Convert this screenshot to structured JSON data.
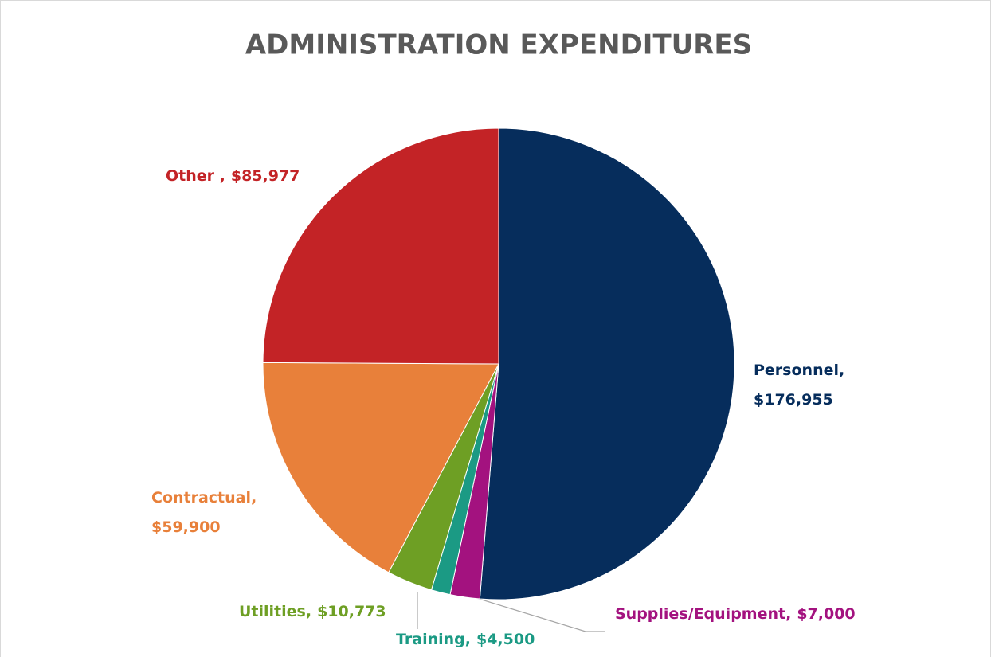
{
  "chart_data": {
    "type": "pie",
    "title": "ADMINISTRATION EXPENDITURES",
    "categories": [
      "Personnel,",
      "Supplies/Equipment,",
      "Training,",
      "Utilities,",
      "Contractual,",
      "Other ,"
    ],
    "values": [
      176955,
      7000,
      4500,
      10773,
      59900,
      85977
    ],
    "value_labels": [
      "$176,955",
      "$7,000",
      "$4,500",
      "$10,773",
      "$59,900",
      "$85,977"
    ],
    "colors": [
      "#062d5c",
      "#a3127f",
      "#1b9a84",
      "#6e9f24",
      "#e8803a",
      "#c32326"
    ]
  }
}
